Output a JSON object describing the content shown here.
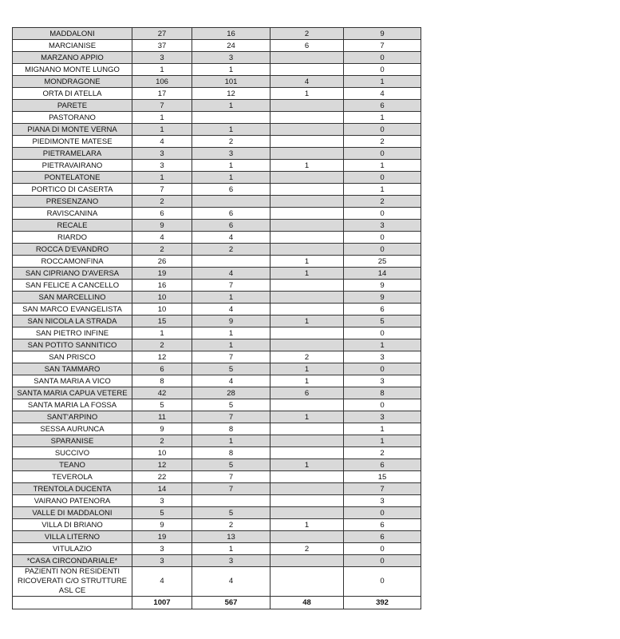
{
  "rows": [
    [
      "MADDALONI",
      "27",
      "16",
      "2",
      "9"
    ],
    [
      "MARCIANISE",
      "37",
      "24",
      "6",
      "7"
    ],
    [
      "MARZANO APPIO",
      "3",
      "3",
      "",
      "0"
    ],
    [
      "MIGNANO MONTE LUNGO",
      "1",
      "1",
      "",
      "0"
    ],
    [
      "MONDRAGONE",
      "106",
      "101",
      "4",
      "1"
    ],
    [
      "ORTA DI ATELLA",
      "17",
      "12",
      "1",
      "4"
    ],
    [
      "PARETE",
      "7",
      "1",
      "",
      "6"
    ],
    [
      "PASTORANO",
      "1",
      "",
      "",
      "1"
    ],
    [
      "PIANA DI MONTE VERNA",
      "1",
      "1",
      "",
      "0"
    ],
    [
      "PIEDIMONTE MATESE",
      "4",
      "2",
      "",
      "2"
    ],
    [
      "PIETRAMELARA",
      "3",
      "3",
      "",
      "0"
    ],
    [
      "PIETRAVAIRANO",
      "3",
      "1",
      "1",
      "1"
    ],
    [
      "PONTELATONE",
      "1",
      "1",
      "",
      "0"
    ],
    [
      "PORTICO DI CASERTA",
      "7",
      "6",
      "",
      "1"
    ],
    [
      "PRESENZANO",
      "2",
      "",
      "",
      "2"
    ],
    [
      "RAVISCANINA",
      "6",
      "6",
      "",
      "0"
    ],
    [
      "RECALE",
      "9",
      "6",
      "",
      "3"
    ],
    [
      "RIARDO",
      "4",
      "4",
      "",
      "0"
    ],
    [
      "ROCCA D'EVANDRO",
      "2",
      "2",
      "",
      "0"
    ],
    [
      "ROCCAMONFINA",
      "26",
      "",
      "1",
      "25"
    ],
    [
      "SAN CIPRIANO D'AVERSA",
      "19",
      "4",
      "1",
      "14"
    ],
    [
      "SAN FELICE A CANCELLO",
      "16",
      "7",
      "",
      "9"
    ],
    [
      "SAN MARCELLINO",
      "10",
      "1",
      "",
      "9"
    ],
    [
      "SAN MARCO EVANGELISTA",
      "10",
      "4",
      "",
      "6"
    ],
    [
      "SAN NICOLA LA STRADA",
      "15",
      "9",
      "1",
      "5"
    ],
    [
      "SAN PIETRO INFINE",
      "1",
      "1",
      "",
      "0"
    ],
    [
      "SAN POTITO SANNITICO",
      "2",
      "1",
      "",
      "1"
    ],
    [
      "SAN PRISCO",
      "12",
      "7",
      "2",
      "3"
    ],
    [
      "SAN TAMMARO",
      "6",
      "5",
      "1",
      "0"
    ],
    [
      "SANTA MARIA A VICO",
      "8",
      "4",
      "1",
      "3"
    ],
    [
      "SANTA MARIA CAPUA VETERE",
      "42",
      "28",
      "6",
      "8"
    ],
    [
      "SANTA MARIA LA FOSSA",
      "5",
      "5",
      "",
      "0"
    ],
    [
      "SANT'ARPINO",
      "11",
      "7",
      "1",
      "3"
    ],
    [
      "SESSA AURUNCA",
      "9",
      "8",
      "",
      "1"
    ],
    [
      "SPARANISE",
      "2",
      "1",
      "",
      "1"
    ],
    [
      "SUCCIVO",
      "10",
      "8",
      "",
      "2"
    ],
    [
      "TEANO",
      "12",
      "5",
      "1",
      "6"
    ],
    [
      "TEVEROLA",
      "22",
      "7",
      "",
      "15"
    ],
    [
      "TRENTOLA DUCENTA",
      "14",
      "7",
      "",
      "7"
    ],
    [
      "VAIRANO PATENORA",
      "3",
      "",
      "",
      "3"
    ],
    [
      "VALLE DI MADDALONI",
      "5",
      "5",
      "",
      "0"
    ],
    [
      "VILLA DI BRIANO",
      "9",
      "2",
      "1",
      "6"
    ],
    [
      "VILLA LITERNO",
      "19",
      "13",
      "",
      "6"
    ],
    [
      "VITULAZIO",
      "3",
      "1",
      "2",
      "0"
    ],
    [
      "*CASA CIRCONDARIALE*",
      "3",
      "3",
      "",
      "0"
    ],
    [
      "PAZIENTI NON RESIDENTI RICOVERATI C/O STRUTTURE ASL CE",
      "4",
      "4",
      "",
      "0"
    ]
  ],
  "totals": [
    "",
    "1007",
    "567",
    "48",
    "392"
  ],
  "colors": {
    "row_shade": "#d9d9d9",
    "border": "#333333"
  }
}
